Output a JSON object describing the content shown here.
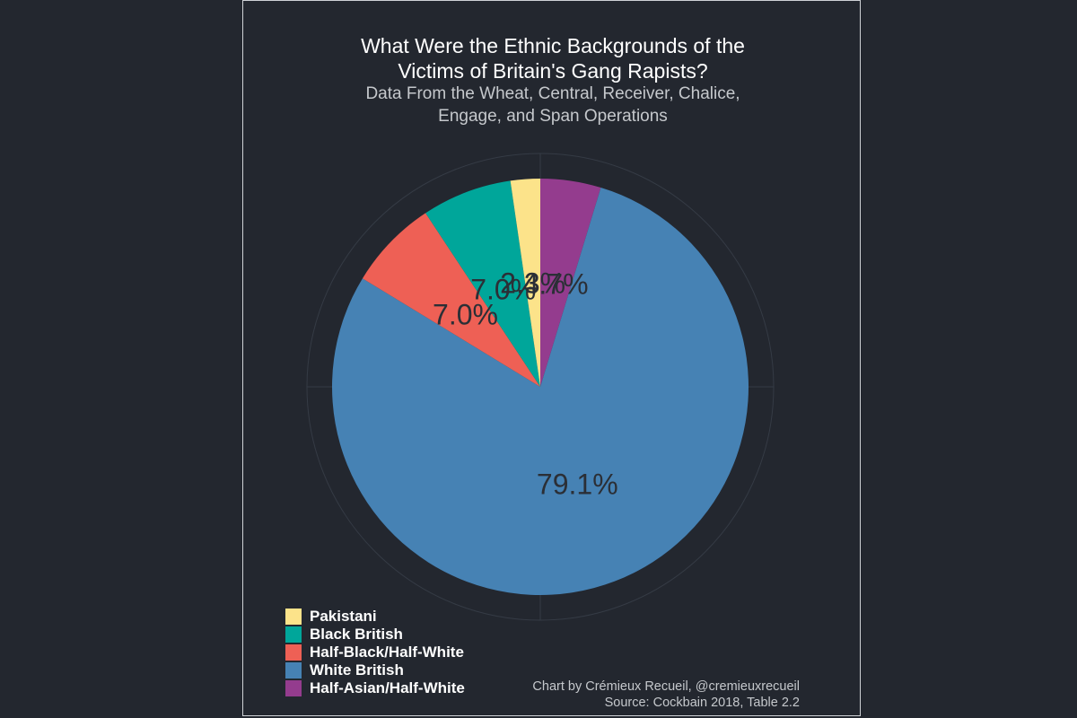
{
  "chart_data": {
    "type": "pie",
    "title": "What Were the Ethnic Backgrounds of the\nVictims of Britain's Gang Rapists?",
    "subtitle": "Data From the Wheat, Central, Receiver, Chalice,\nEngage, and Span Operations",
    "categories": [
      "Half-Asian/Half-White",
      "White British",
      "Half-Black/Half-White",
      "Black British",
      "Pakistani"
    ],
    "values": [
      4.7,
      79.1,
      7.0,
      7.0,
      2.3
    ],
    "labels": [
      "4.7%",
      "79.1%",
      "7.0%",
      "7.0%",
      "2.3%"
    ],
    "colors": [
      "#943c8e",
      "#4682b4",
      "#ee6055",
      "#00a69a",
      "#fce38a"
    ],
    "legend": {
      "position": "bottom-left",
      "entries": [
        "Pakistani",
        "Black British",
        "Half-Black/Half-White",
        "White British",
        "Half-Asian/Half-White"
      ],
      "colors": [
        "#fce38a",
        "#00a69a",
        "#ee6055",
        "#4682b4",
        "#943c8e"
      ]
    },
    "grid": true
  },
  "caption": {
    "line1": "Chart by Crémieux Recueil, @cremieuxrecueil",
    "line2": "Source: Cockbain 2018, Table 2.2"
  }
}
